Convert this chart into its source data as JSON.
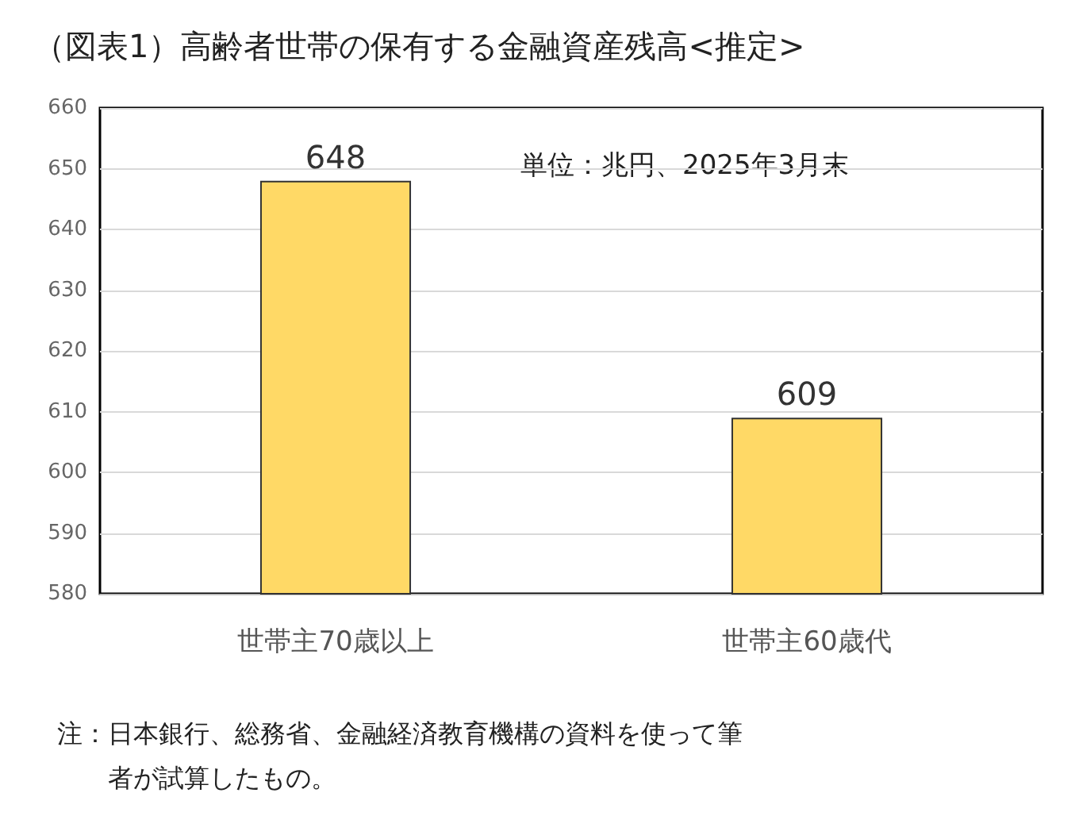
{
  "chart_data": {
    "type": "bar",
    "title": "（図表1）高齢者世帯の保有する金融資産残高<推定>",
    "categories": [
      "世帯主70歳以上",
      "世帯主60歳代"
    ],
    "values": [
      648,
      609
    ],
    "color": "#ffd966",
    "ylim": [
      580,
      660
    ],
    "yticks": [
      580,
      590,
      600,
      610,
      620,
      630,
      640,
      650,
      660
    ],
    "grid": "y",
    "data_labels": true,
    "annotations": [
      "単位：兆円、2025年3月末",
      "注：日本銀行、総務省、金融経済教育機構の資料を使って筆者が試算したもの。"
    ]
  }
}
